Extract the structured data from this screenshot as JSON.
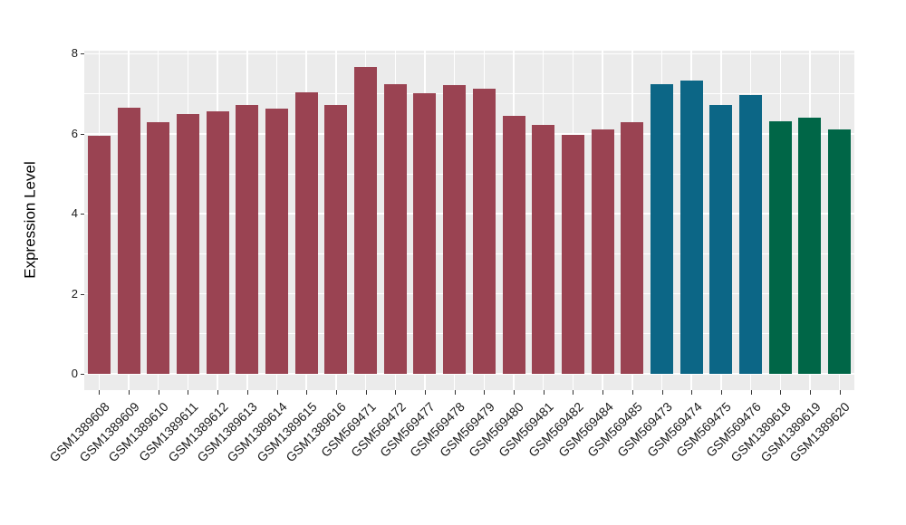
{
  "chart_data": {
    "type": "bar",
    "title": "",
    "xlabel": "",
    "ylabel": "Expression Level",
    "ylim": [
      0,
      8
    ],
    "yticks": [
      "0",
      "2",
      "4",
      "6",
      "8"
    ],
    "minor_gridlines": [
      1,
      3,
      5,
      7
    ],
    "grid": true,
    "legend_position": "none",
    "categories": [
      "GSM1389608",
      "GSM1389609",
      "GSM1389610",
      "GSM1389611",
      "GSM1389612",
      "GSM1389613",
      "GSM1389614",
      "GSM1389615",
      "GSM1389616",
      "GSM569471",
      "GSM569472",
      "GSM569477",
      "GSM569478",
      "GSM569479",
      "GSM569480",
      "GSM569481",
      "GSM569482",
      "GSM569484",
      "GSM569485",
      "GSM569473",
      "GSM569474",
      "GSM569475",
      "GSM569476",
      "GSM1389618",
      "GSM1389619",
      "GSM1389620"
    ],
    "series": [
      {
        "name": "Expression Level",
        "values": [
          5.95,
          6.66,
          6.28,
          6.5,
          6.56,
          6.73,
          6.63,
          7.03,
          6.72,
          7.67,
          7.25,
          7.02,
          7.23,
          7.13,
          6.44,
          6.23,
          5.97,
          6.1,
          6.29,
          7.24,
          7.33,
          6.72,
          6.97,
          6.32,
          6.4,
          6.1
        ]
      }
    ],
    "bar_colors": [
      "#9A4352",
      "#9A4352",
      "#9A4352",
      "#9A4352",
      "#9A4352",
      "#9A4352",
      "#9A4352",
      "#9A4352",
      "#9A4352",
      "#9A4352",
      "#9A4352",
      "#9A4352",
      "#9A4352",
      "#9A4352",
      "#9A4352",
      "#9A4352",
      "#9A4352",
      "#9A4352",
      "#9A4352",
      "#0C6686",
      "#0C6686",
      "#0C6686",
      "#0C6686",
      "#006647",
      "#006647",
      "#006647"
    ],
    "style": {
      "panel_bg": "#EBEBEB",
      "grid_color": "#FFFFFF",
      "axis_text_color": "#1A1A1A",
      "tick_color": "#333333",
      "background": "#FFFFFF",
      "group_palette": {
        "maroon": "#9A4352",
        "blue": "#0C6686",
        "green": "#006647"
      }
    }
  }
}
